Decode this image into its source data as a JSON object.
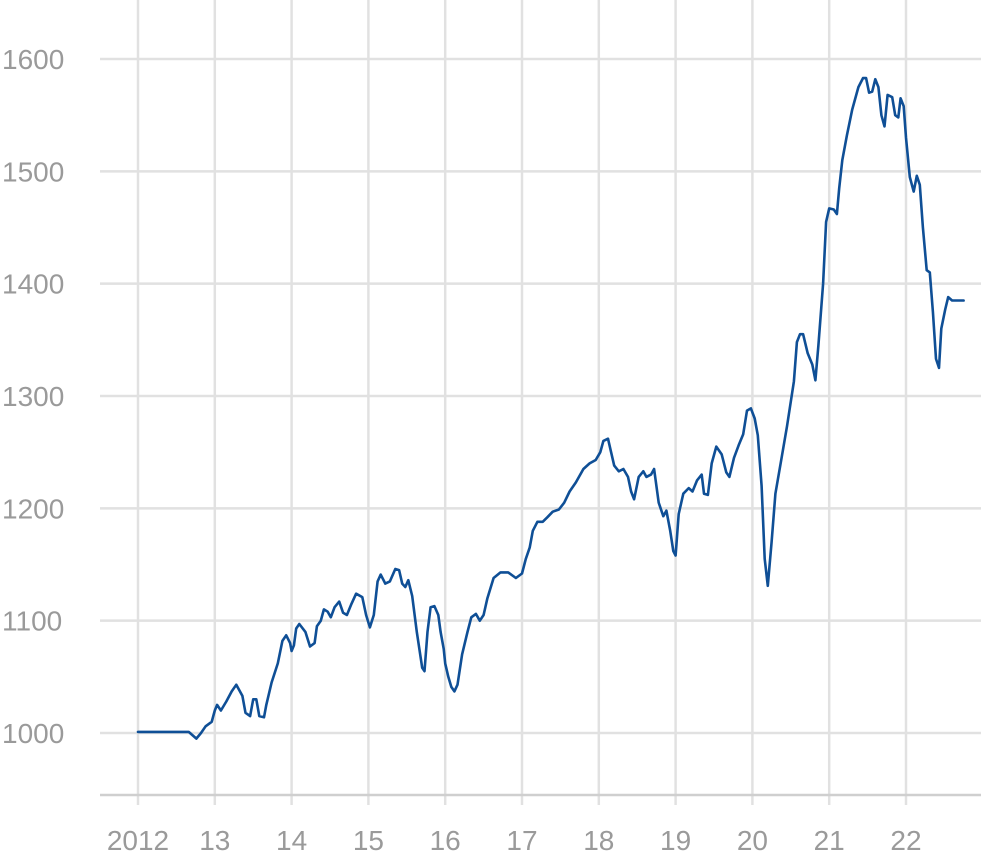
{
  "chart_data": {
    "type": "line",
    "title": "",
    "xlabel": "",
    "ylabel": "",
    "xlim": [
      2012,
      2022.85
    ],
    "ylim": [
      945,
      1625
    ],
    "grid": true,
    "x_ticks": [
      2012,
      2013,
      2014,
      2015,
      2016,
      2017,
      2018,
      2019,
      2020,
      2021,
      2022
    ],
    "x_tick_labels": [
      "2012",
      "13",
      "14",
      "15",
      "16",
      "17",
      "18",
      "19",
      "20",
      "21",
      "22"
    ],
    "y_ticks": [
      1000,
      1100,
      1200,
      1300,
      1400,
      1500,
      1600
    ],
    "y_tick_labels": [
      "1000",
      "1100",
      "1200",
      "1300",
      "1400",
      "1500",
      "1600"
    ],
    "colors": {
      "line": "#0f4f96",
      "grid": "#e1e1e1",
      "tick_text": "#9a9a9a"
    },
    "series": [
      {
        "points": [
          [
            2012.0,
            1001
          ],
          [
            2012.3,
            1001
          ],
          [
            2012.6,
            1001
          ],
          [
            2012.66,
            1001
          ],
          [
            2012.76,
            995
          ],
          [
            2012.82,
            1000
          ],
          [
            2012.88,
            1006
          ],
          [
            2012.96,
            1010
          ],
          [
            2013.0,
            1020
          ],
          [
            2013.03,
            1025
          ],
          [
            2013.08,
            1020
          ],
          [
            2013.15,
            1028
          ],
          [
            2013.22,
            1037
          ],
          [
            2013.28,
            1043
          ],
          [
            2013.36,
            1033
          ],
          [
            2013.4,
            1018
          ],
          [
            2013.46,
            1015
          ],
          [
            2013.5,
            1030
          ],
          [
            2013.54,
            1030
          ],
          [
            2013.58,
            1015
          ],
          [
            2013.64,
            1014
          ],
          [
            2013.67,
            1025
          ],
          [
            2013.74,
            1045
          ],
          [
            2013.82,
            1062
          ],
          [
            2013.88,
            1082
          ],
          [
            2013.93,
            1087
          ],
          [
            2013.98,
            1080
          ],
          [
            2014.0,
            1073
          ],
          [
            2014.03,
            1078
          ],
          [
            2014.06,
            1093
          ],
          [
            2014.1,
            1097
          ],
          [
            2014.18,
            1090
          ],
          [
            2014.24,
            1077
          ],
          [
            2014.3,
            1080
          ],
          [
            2014.33,
            1095
          ],
          [
            2014.38,
            1100
          ],
          [
            2014.42,
            1110
          ],
          [
            2014.47,
            1108
          ],
          [
            2014.51,
            1103
          ],
          [
            2014.56,
            1112
          ],
          [
            2014.62,
            1117
          ],
          [
            2014.67,
            1107
          ],
          [
            2014.72,
            1105
          ],
          [
            2014.78,
            1115
          ],
          [
            2014.84,
            1124
          ],
          [
            2014.92,
            1121
          ],
          [
            2014.97,
            1105
          ],
          [
            2015.02,
            1094
          ],
          [
            2015.07,
            1105
          ],
          [
            2015.12,
            1135
          ],
          [
            2015.16,
            1141
          ],
          [
            2015.22,
            1133
          ],
          [
            2015.28,
            1135
          ],
          [
            2015.35,
            1146
          ],
          [
            2015.4,
            1145
          ],
          [
            2015.44,
            1133
          ],
          [
            2015.48,
            1130
          ],
          [
            2015.52,
            1136
          ],
          [
            2015.57,
            1122
          ],
          [
            2015.63,
            1090
          ],
          [
            2015.7,
            1058
          ],
          [
            2015.73,
            1055
          ],
          [
            2015.77,
            1090
          ],
          [
            2015.81,
            1112
          ],
          [
            2015.86,
            1113
          ],
          [
            2015.91,
            1105
          ],
          [
            2015.94,
            1090
          ],
          [
            2015.98,
            1075
          ],
          [
            2016.0,
            1062
          ],
          [
            2016.04,
            1050
          ],
          [
            2016.08,
            1041
          ],
          [
            2016.12,
            1037
          ],
          [
            2016.16,
            1043
          ],
          [
            2016.22,
            1070
          ],
          [
            2016.29,
            1090
          ],
          [
            2016.34,
            1103
          ],
          [
            2016.4,
            1106
          ],
          [
            2016.45,
            1100
          ],
          [
            2016.5,
            1105
          ],
          [
            2016.55,
            1120
          ],
          [
            2016.63,
            1138
          ],
          [
            2016.72,
            1143
          ],
          [
            2016.82,
            1143
          ],
          [
            2016.92,
            1138
          ],
          [
            2017.0,
            1142
          ],
          [
            2017.05,
            1155
          ],
          [
            2017.1,
            1165
          ],
          [
            2017.14,
            1180
          ],
          [
            2017.2,
            1188
          ],
          [
            2017.27,
            1188
          ],
          [
            2017.33,
            1192
          ],
          [
            2017.4,
            1197
          ],
          [
            2017.48,
            1199
          ],
          [
            2017.55,
            1205
          ],
          [
            2017.62,
            1215
          ],
          [
            2017.7,
            1223
          ],
          [
            2017.8,
            1235
          ],
          [
            2017.88,
            1240
          ],
          [
            2017.96,
            1243
          ],
          [
            2018.02,
            1250
          ],
          [
            2018.06,
            1260
          ],
          [
            2018.12,
            1262
          ],
          [
            2018.16,
            1250
          ],
          [
            2018.2,
            1238
          ],
          [
            2018.26,
            1233
          ],
          [
            2018.32,
            1235
          ],
          [
            2018.38,
            1228
          ],
          [
            2018.42,
            1215
          ],
          [
            2018.46,
            1208
          ],
          [
            2018.52,
            1228
          ],
          [
            2018.58,
            1233
          ],
          [
            2018.62,
            1228
          ],
          [
            2018.68,
            1230
          ],
          [
            2018.72,
            1235
          ],
          [
            2018.78,
            1205
          ],
          [
            2018.84,
            1193
          ],
          [
            2018.88,
            1198
          ],
          [
            2018.93,
            1180
          ],
          [
            2018.97,
            1162
          ],
          [
            2019.0,
            1158
          ],
          [
            2019.04,
            1195
          ],
          [
            2019.1,
            1213
          ],
          [
            2019.17,
            1218
          ],
          [
            2019.22,
            1215
          ],
          [
            2019.28,
            1225
          ],
          [
            2019.34,
            1230
          ],
          [
            2019.37,
            1213
          ],
          [
            2019.42,
            1212
          ],
          [
            2019.47,
            1240
          ],
          [
            2019.53,
            1255
          ],
          [
            2019.6,
            1248
          ],
          [
            2019.66,
            1232
          ],
          [
            2019.7,
            1228
          ],
          [
            2019.76,
            1245
          ],
          [
            2019.82,
            1256
          ],
          [
            2019.88,
            1266
          ],
          [
            2019.93,
            1287
          ],
          [
            2019.98,
            1289
          ],
          [
            2020.03,
            1280
          ],
          [
            2020.07,
            1265
          ],
          [
            2020.12,
            1220
          ],
          [
            2020.16,
            1155
          ],
          [
            2020.2,
            1131
          ],
          [
            2020.25,
            1170
          ],
          [
            2020.3,
            1213
          ],
          [
            2020.38,
            1245
          ],
          [
            2020.45,
            1273
          ],
          [
            2020.54,
            1313
          ],
          [
            2020.58,
            1348
          ],
          [
            2020.62,
            1355
          ],
          [
            2020.66,
            1355
          ],
          [
            2020.72,
            1338
          ],
          [
            2020.78,
            1328
          ],
          [
            2020.82,
            1314
          ],
          [
            2020.86,
            1345
          ],
          [
            2020.92,
            1400
          ],
          [
            2020.96,
            1455
          ],
          [
            2021.0,
            1467
          ],
          [
            2021.06,
            1466
          ],
          [
            2021.1,
            1462
          ],
          [
            2021.13,
            1485
          ],
          [
            2021.17,
            1510
          ],
          [
            2021.23,
            1532
          ],
          [
            2021.3,
            1555
          ],
          [
            2021.38,
            1575
          ],
          [
            2021.44,
            1583
          ],
          [
            2021.48,
            1583
          ],
          [
            2021.52,
            1570
          ],
          [
            2021.56,
            1571
          ],
          [
            2021.6,
            1582
          ],
          [
            2021.64,
            1575
          ],
          [
            2021.68,
            1550
          ],
          [
            2021.72,
            1540
          ],
          [
            2021.76,
            1568
          ],
          [
            2021.82,
            1566
          ],
          [
            2021.86,
            1550
          ],
          [
            2021.9,
            1548
          ],
          [
            2021.93,
            1565
          ],
          [
            2021.97,
            1558
          ],
          [
            2022.0,
            1530
          ],
          [
            2022.05,
            1495
          ],
          [
            2022.1,
            1482
          ],
          [
            2022.14,
            1496
          ],
          [
            2022.18,
            1488
          ],
          [
            2022.22,
            1450
          ],
          [
            2022.27,
            1412
          ],
          [
            2022.31,
            1410
          ],
          [
            2022.35,
            1375
          ],
          [
            2022.39,
            1333
          ],
          [
            2022.43,
            1325
          ],
          [
            2022.46,
            1360
          ],
          [
            2022.51,
            1377
          ],
          [
            2022.55,
            1388
          ],
          [
            2022.6,
            1385
          ],
          [
            2022.68,
            1385
          ],
          [
            2022.75,
            1385
          ]
        ]
      }
    ]
  }
}
